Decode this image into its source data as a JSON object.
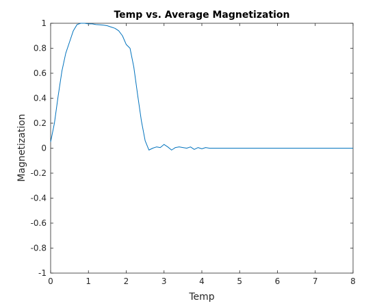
{
  "chart_data": {
    "type": "line",
    "title": "Temp vs. Average Magnetization",
    "xlabel": "Temp",
    "ylabel": "Magnetization",
    "xlim": [
      0,
      8
    ],
    "ylim": [
      -1,
      1
    ],
    "xticks": [
      "0",
      "1",
      "2",
      "3",
      "4",
      "5",
      "6",
      "7",
      "8"
    ],
    "yticks": [
      "1",
      "0.8",
      "0.6",
      "0.4",
      "0.2",
      "0",
      "-0.2",
      "-0.4",
      "-0.6",
      "-0.8",
      "-1"
    ],
    "grid": false,
    "line_color": "#0072bd",
    "series": [
      {
        "x": [
          0,
          0.1,
          0.2,
          0.3,
          0.4,
          0.5,
          0.6,
          0.7,
          0.8,
          0.9,
          1.0,
          1.1,
          1.2,
          1.3,
          1.4,
          1.5,
          1.6,
          1.7,
          1.8,
          1.9,
          2.0,
          2.1,
          2.2,
          2.3,
          2.4,
          2.5,
          2.6,
          2.7,
          2.8,
          2.9,
          3.0,
          3.1,
          3.2,
          3.3,
          3.4,
          3.5,
          3.6,
          3.7,
          3.8,
          3.9,
          4.0,
          4.1,
          4.2,
          4.5,
          5.0,
          5.5,
          6.0,
          6.5,
          7.0,
          7.5,
          8.0
        ],
        "y": [
          0.05,
          0.2,
          0.42,
          0.62,
          0.76,
          0.85,
          0.94,
          0.99,
          1.0,
          1.0,
          0.995,
          0.995,
          0.99,
          0.988,
          0.985,
          0.98,
          0.97,
          0.96,
          0.94,
          0.9,
          0.83,
          0.8,
          0.65,
          0.43,
          0.22,
          0.06,
          -0.015,
          0.0,
          0.01,
          0.005,
          0.03,
          0.01,
          -0.015,
          0.005,
          0.01,
          0.005,
          0.0,
          0.01,
          -0.01,
          0.005,
          -0.005,
          0.005,
          0.0,
          0.0,
          0.0,
          0.0,
          0.0,
          0.0,
          0.0,
          0.0,
          0.0
        ]
      }
    ]
  }
}
